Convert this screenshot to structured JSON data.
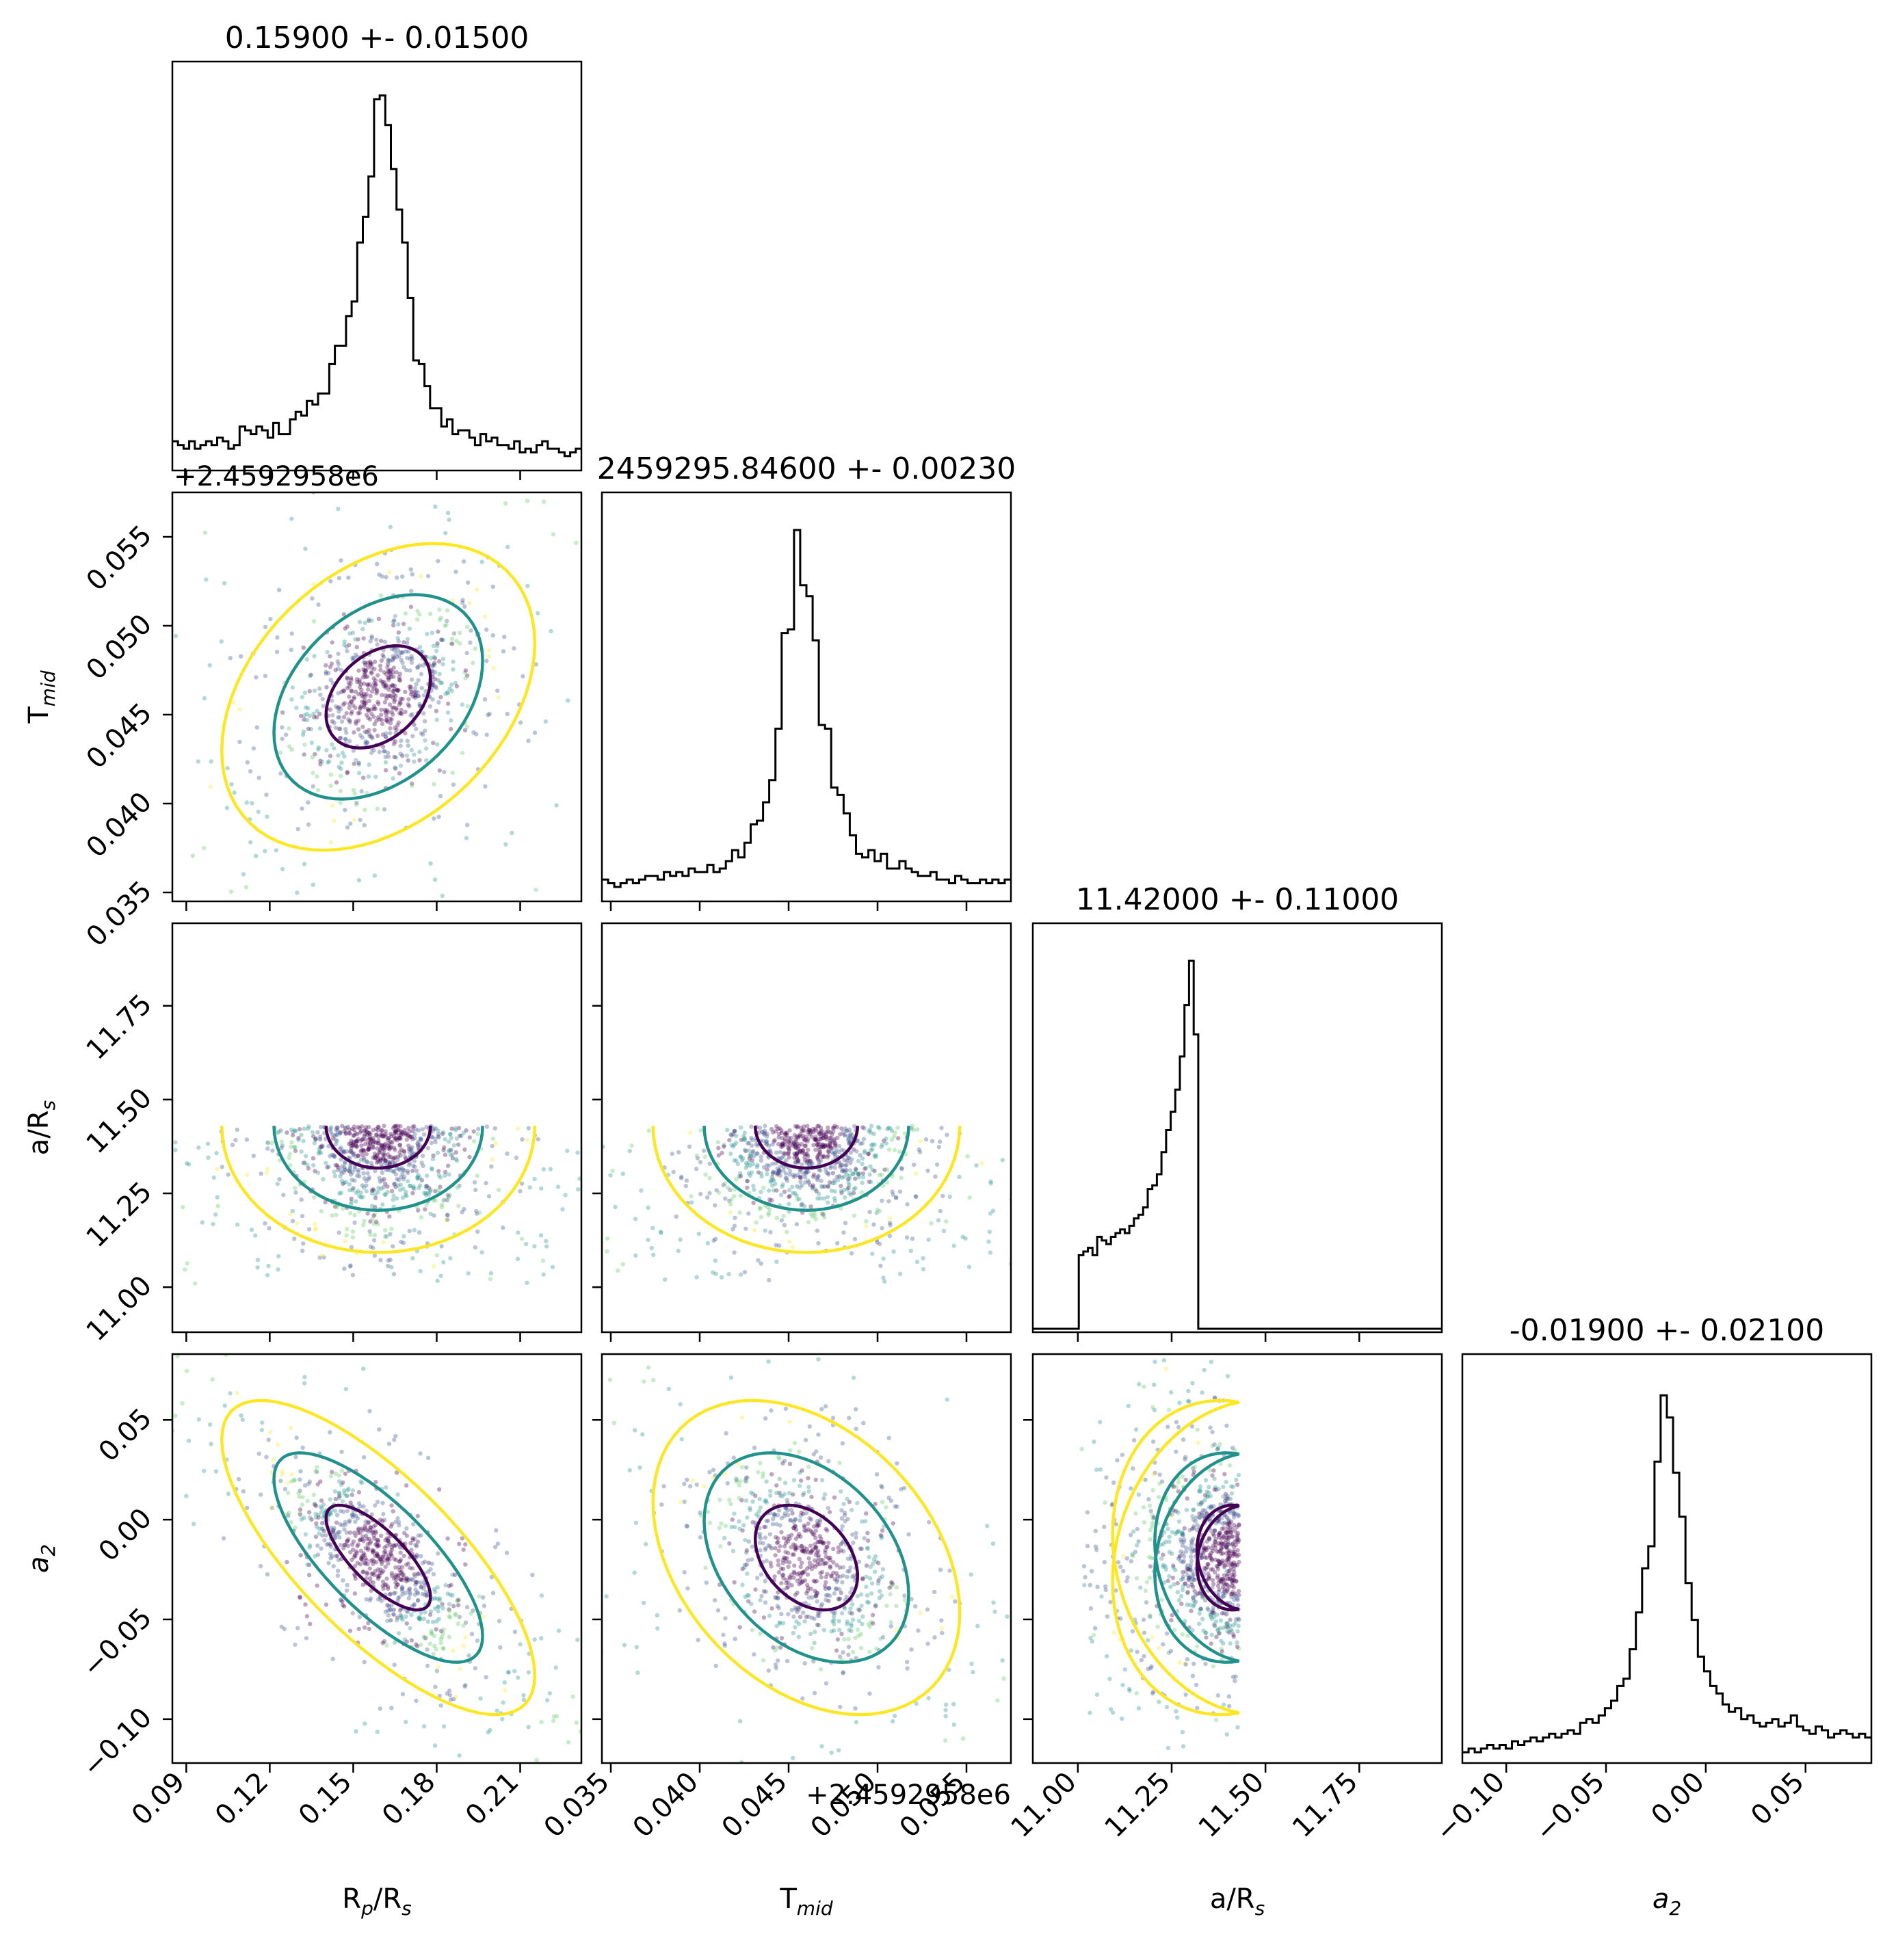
{
  "chart_data": {
    "type": "scatter",
    "figure": "corner plot of posterior samples",
    "parameters": [
      {
        "key": "rp",
        "label": "R_p/R_s",
        "label_main": "R",
        "label_sub": "p",
        "label_tail": "/R",
        "label_sub2": "s",
        "title": "0.15900 +- 0.01500",
        "median": 0.159,
        "sigma": 0.015,
        "lim": [
          0.085,
          0.232
        ],
        "ticks": [
          "0.09",
          "0.12",
          "0.15",
          "0.18",
          "0.21"
        ],
        "tick_values": [
          0.09,
          0.12,
          0.15,
          0.18,
          0.21
        ]
      },
      {
        "key": "tmid",
        "label": "T_mid",
        "label_main": "T",
        "label_sub": "mid",
        "label_tail": "",
        "label_sub2": "",
        "title": "2459295.84600 +- 0.00230",
        "median": 0.046,
        "sigma": 0.0023,
        "offset": "+2.4592958e6",
        "lim": [
          0.0345,
          0.0575
        ],
        "ticks": [
          "0.035",
          "0.040",
          "0.045",
          "0.050",
          "0.055"
        ],
        "tick_values": [
          0.035,
          0.04,
          0.045,
          0.05,
          0.055
        ]
      },
      {
        "key": "ars",
        "label": "a/R_s",
        "label_main": "a/R",
        "label_sub": "s",
        "label_tail": "",
        "label_sub2": "",
        "title": "11.42000 +- 0.11000",
        "median": 11.42,
        "sigma": 0.11,
        "lim": [
          10.88,
          11.97
        ],
        "ticks": [
          "11.00",
          "11.25",
          "11.50",
          "11.75"
        ],
        "tick_values": [
          11.0,
          11.25,
          11.5,
          11.75
        ]
      },
      {
        "key": "a2",
        "label": "a_2",
        "label_main": "a",
        "label_sub": "2",
        "label_tail": "",
        "label_sub2": "",
        "title": "-0.01900 +- 0.02100",
        "median": -0.019,
        "sigma": 0.021,
        "lim": [
          -0.122,
          0.083
        ],
        "ticks": [
          "−0.10",
          "−0.05",
          "0.00",
          "0.05"
        ],
        "tick_values": [
          -0.1,
          -0.05,
          0.0,
          0.05
        ]
      }
    ],
    "hists": {
      "rp": {
        "bins": [
          0.085,
          0.232
        ],
        "heights": [
          0.07,
          0.06,
          0.05,
          0.07,
          0.05,
          0.06,
          0.07,
          0.06,
          0.08,
          0.07,
          0.05,
          0.06,
          0.11,
          0.1,
          0.09,
          0.11,
          0.1,
          0.08,
          0.12,
          0.09,
          0.09,
          0.13,
          0.15,
          0.14,
          0.18,
          0.17,
          0.2,
          0.2,
          0.28,
          0.33,
          0.33,
          0.41,
          0.45,
          0.61,
          0.68,
          0.79,
          1.0,
          1.01,
          0.93,
          0.81,
          0.7,
          0.61,
          0.46,
          0.29,
          0.28,
          0.22,
          0.16,
          0.16,
          0.11,
          0.13,
          0.09,
          0.1,
          0.1,
          0.08,
          0.06,
          0.09,
          0.07,
          0.08,
          0.06,
          0.06,
          0.05,
          0.07,
          0.04,
          0.05,
          0.04,
          0.06,
          0.07,
          0.05,
          0.05,
          0.04,
          0.03,
          0.04,
          0.05
        ]
      },
      "tmid": {
        "bins": [
          0.0345,
          0.0575
        ],
        "heights": [
          0.05,
          0.04,
          0.03,
          0.04,
          0.05,
          0.04,
          0.05,
          0.06,
          0.06,
          0.05,
          0.07,
          0.06,
          0.07,
          0.06,
          0.08,
          0.07,
          0.07,
          0.09,
          0.07,
          0.08,
          0.1,
          0.13,
          0.11,
          0.15,
          0.2,
          0.21,
          0.26,
          0.32,
          0.46,
          0.72,
          0.73,
          1.0,
          0.85,
          0.82,
          0.7,
          0.47,
          0.46,
          0.3,
          0.28,
          0.23,
          0.17,
          0.12,
          0.11,
          0.13,
          0.1,
          0.12,
          0.08,
          0.08,
          0.1,
          0.08,
          0.07,
          0.06,
          0.06,
          0.07,
          0.05,
          0.05,
          0.04,
          0.06,
          0.05,
          0.04,
          0.04,
          0.05,
          0.04,
          0.05,
          0.04,
          0.05
        ]
      },
      "ars": {
        "bins": [
          10.88,
          11.97
        ],
        "heights": [
          0,
          0,
          0,
          0,
          0,
          0,
          0,
          0,
          0,
          0,
          0.2,
          0.21,
          0.22,
          0.2,
          0.25,
          0.24,
          0.23,
          0.25,
          0.26,
          0.27,
          0.26,
          0.28,
          0.3,
          0.31,
          0.33,
          0.38,
          0.39,
          0.42,
          0.48,
          0.54,
          0.59,
          0.65,
          0.74,
          0.88,
          1.0,
          0.8,
          0,
          0,
          0,
          0,
          0,
          0,
          0,
          0,
          0,
          0,
          0,
          0,
          0,
          0,
          0,
          0,
          0,
          0,
          0,
          0,
          0,
          0,
          0,
          0,
          0,
          0,
          0,
          0,
          0,
          0,
          0,
          0,
          0,
          0,
          0,
          0,
          0,
          0,
          0,
          0,
          0,
          0,
          0,
          0,
          0,
          0,
          0,
          0,
          0,
          0,
          0,
          0,
          0
        ]
      },
      "a2": {
        "bins": [
          -0.122,
          0.083
        ],
        "heights": [
          0.02,
          0.03,
          0.02,
          0.03,
          0.04,
          0.03,
          0.04,
          0.03,
          0.05,
          0.04,
          0.05,
          0.06,
          0.05,
          0.06,
          0.07,
          0.06,
          0.07,
          0.08,
          0.07,
          0.1,
          0.11,
          0.1,
          0.12,
          0.14,
          0.16,
          0.2,
          0.22,
          0.3,
          0.4,
          0.52,
          0.58,
          0.81,
          0.99,
          0.93,
          0.78,
          0.66,
          0.48,
          0.38,
          0.28,
          0.24,
          0.2,
          0.18,
          0.15,
          0.13,
          0.14,
          0.11,
          0.12,
          0.1,
          0.09,
          0.1,
          0.11,
          0.09,
          0.1,
          0.12,
          0.09,
          0.08,
          0.07,
          0.09,
          0.08,
          0.06,
          0.07,
          0.08,
          0.07,
          0.06,
          0.07,
          0.06
        ]
      }
    },
    "correlations": {
      "tmid|rp": 0.35,
      "ars|rp": 0.0,
      "ars|tmid": 0.0,
      "a2|rp": -0.75,
      "a2|tmid": -0.35,
      "a2|ars": -0.15
    },
    "contour_colors": [
      "#440154",
      "#21918c",
      "#fde725"
    ],
    "scatter_colors": [
      "#440154",
      "#3b528b",
      "#21918c",
      "#5ec962",
      "#fde725"
    ]
  }
}
